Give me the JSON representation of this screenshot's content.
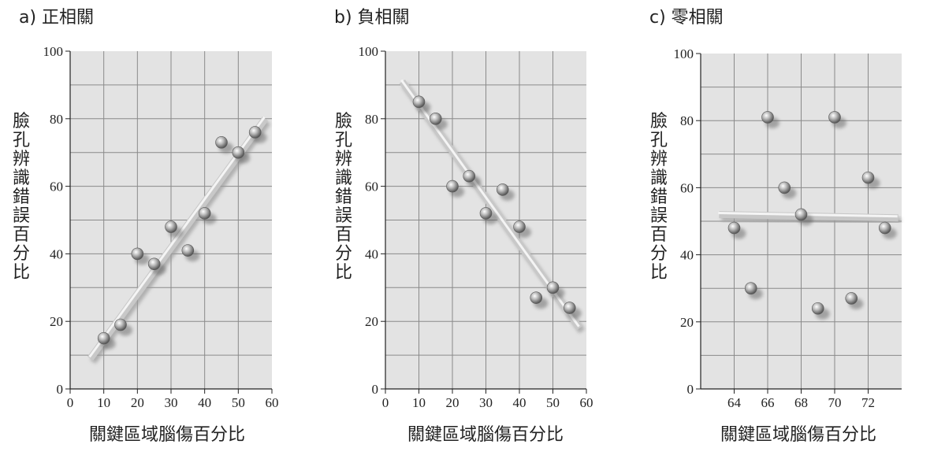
{
  "chart_data": [
    {
      "type": "scatter",
      "title": "a) 正相關",
      "xlabel": "關鍵區域腦傷百分比",
      "ylabel": "臉孔辨識錯誤百分比",
      "xlim": [
        0,
        60
      ],
      "ylim": [
        0,
        100
      ],
      "xticks": [
        0,
        10,
        20,
        30,
        40,
        50,
        60
      ],
      "yticks": [
        0,
        20,
        40,
        60,
        80,
        100
      ],
      "grid": true,
      "points": [
        {
          "x": 10,
          "y": 15
        },
        {
          "x": 15,
          "y": 19
        },
        {
          "x": 20,
          "y": 40
        },
        {
          "x": 25,
          "y": 37
        },
        {
          "x": 30,
          "y": 48
        },
        {
          "x": 35,
          "y": 41
        },
        {
          "x": 40,
          "y": 52
        },
        {
          "x": 45,
          "y": 73
        },
        {
          "x": 50,
          "y": 70
        },
        {
          "x": 55,
          "y": 76
        }
      ],
      "trend_line": {
        "x": [
          6,
          58
        ],
        "y": [
          9,
          80
        ]
      }
    },
    {
      "type": "scatter",
      "title": "b) 負相關",
      "xlabel": "關鍵區域腦傷百分比",
      "ylabel": "臉孔辨識錯誤百分比",
      "xlim": [
        0,
        60
      ],
      "ylim": [
        0,
        100
      ],
      "xticks": [
        0,
        10,
        20,
        30,
        40,
        50,
        60
      ],
      "yticks": [
        0,
        20,
        40,
        60,
        80,
        100
      ],
      "grid": true,
      "points": [
        {
          "x": 10,
          "y": 85
        },
        {
          "x": 15,
          "y": 80
        },
        {
          "x": 20,
          "y": 60
        },
        {
          "x": 25,
          "y": 63
        },
        {
          "x": 30,
          "y": 52
        },
        {
          "x": 35,
          "y": 59
        },
        {
          "x": 40,
          "y": 48
        },
        {
          "x": 45,
          "y": 27
        },
        {
          "x": 50,
          "y": 30
        },
        {
          "x": 55,
          "y": 24
        }
      ],
      "trend_line": {
        "x": [
          5,
          58
        ],
        "y": [
          91,
          18
        ]
      }
    },
    {
      "type": "scatter",
      "title": "c) 零相關",
      "xlabel": "關鍵區域腦傷百分比",
      "ylabel": "臉孔辨識錯誤百分比",
      "xlim": [
        62,
        74
      ],
      "ylim": [
        0,
        100
      ],
      "xticks": [
        64,
        66,
        68,
        70,
        72
      ],
      "yticks": [
        0,
        20,
        40,
        60,
        80,
        100
      ],
      "grid": true,
      "points": [
        {
          "x": 64,
          "y": 48
        },
        {
          "x": 65,
          "y": 30
        },
        {
          "x": 66,
          "y": 81
        },
        {
          "x": 67,
          "y": 60
        },
        {
          "x": 68,
          "y": 52
        },
        {
          "x": 69,
          "y": 24
        },
        {
          "x": 70,
          "y": 81
        },
        {
          "x": 71,
          "y": 27
        },
        {
          "x": 72,
          "y": 63
        },
        {
          "x": 73,
          "y": 48
        }
      ],
      "trend_line": {
        "x": [
          63.1,
          73.8
        ],
        "y": [
          52,
          51
        ]
      }
    }
  ]
}
